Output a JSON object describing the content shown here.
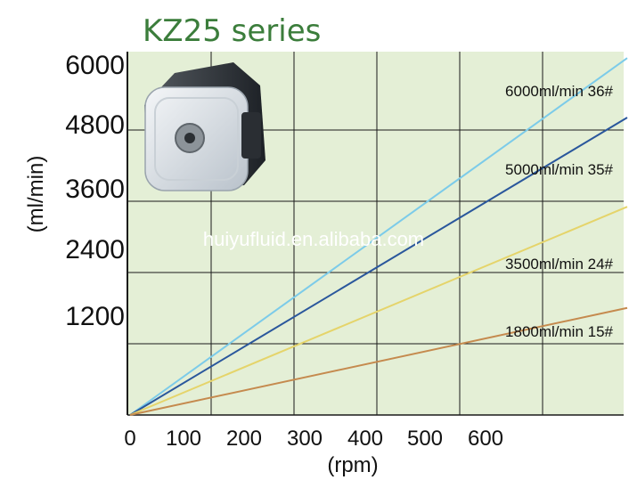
{
  "chart_data": {
    "type": "line",
    "title": "KZ25 series",
    "watermark": "huiyufluid.en.alibaba.com",
    "xlabel": "(rpm)",
    "ylabel": "(ml/min)",
    "x_ticks": [
      "0",
      "100",
      "200",
      "300",
      "400",
      "500",
      "600"
    ],
    "y_ticks": [
      "1200",
      "2400",
      "3600",
      "4800",
      "6000"
    ],
    "xlim": [
      0,
      600
    ],
    "ylim": [
      0,
      6000
    ],
    "grid": true,
    "colors": {
      "title": "#3b7d3b",
      "plot_bg": "#e4efd6",
      "grid": "#1a1a1a",
      "axis": "#1a1a1a",
      "text": "#111111",
      "watermark": "#ffffff"
    },
    "series": [
      {
        "label": "6000ml/min 36#",
        "color": "#7ccbe9",
        "x": [
          0,
          600
        ],
        "y": [
          0,
          6000
        ]
      },
      {
        "label": "5000ml/min 35#",
        "color": "#2a579c",
        "x": [
          0,
          600
        ],
        "y": [
          0,
          5000
        ]
      },
      {
        "label": "3500ml/min 24#",
        "color": "#e5d46a",
        "x": [
          0,
          600
        ],
        "y": [
          0,
          3500
        ]
      },
      {
        "label": "1800ml/min 15#",
        "color": "#c58a4e",
        "x": [
          0,
          600
        ],
        "y": [
          0,
          1800
        ]
      }
    ],
    "image": {
      "description_icon": "peristaltic-pump-head"
    }
  }
}
